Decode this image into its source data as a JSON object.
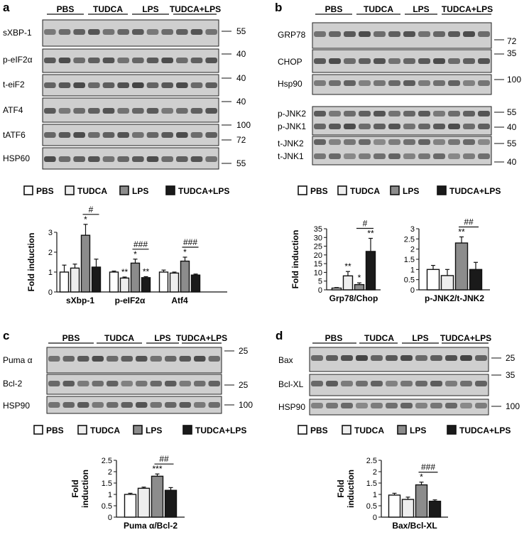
{
  "panels": [
    {
      "letter": "a",
      "group_labels": [
        "PBS",
        "TUDCA",
        "LPS",
        "TUDCA+LPS"
      ],
      "bands": [
        {
          "label": "sXBP-1",
          "marker": "55"
        },
        {
          "label": "p-eIF2α",
          "marker": "40"
        },
        {
          "label": "t-eiF2",
          "marker": "40"
        },
        {
          "label": "ATF4",
          "marker": "40"
        },
        {
          "label": "tATF6",
          "markers": [
            "100",
            "72"
          ]
        },
        {
          "label": "HSP60",
          "marker": "55"
        }
      ],
      "legend": [
        "PBS",
        "TUDCA",
        "LPS",
        "TUDCA+LPS"
      ],
      "chart_data": {
        "type": "bar",
        "ylabel": "Fold induction",
        "ylim": [
          0,
          3
        ],
        "yticks": [
          "0",
          "1",
          "2",
          "3"
        ],
        "categories": [
          "sXbp-1",
          "p-eIF2α",
          "Atf4"
        ],
        "series": [
          {
            "name": "PBS",
            "values": [
              1.0,
              1.0,
              1.0
            ]
          },
          {
            "name": "TUDCA",
            "values": [
              1.2,
              0.7,
              0.95
            ]
          },
          {
            "name": "LPS",
            "values": [
              2.85,
              1.45,
              1.55
            ]
          },
          {
            "name": "TUDCA+LPS",
            "values": [
              1.25,
              0.72,
              0.85
            ]
          }
        ],
        "errors": [
          [
            0.35,
            0.05,
            0.1
          ],
          [
            0.2,
            0.05,
            0.05
          ],
          [
            0.55,
            0.2,
            0.2
          ],
          [
            0.4,
            0.05,
            0.05
          ]
        ],
        "annotations": [
          {
            "text": "*",
            "category": 0,
            "series": 2
          },
          {
            "text": "#",
            "category": 0
          },
          {
            "text": "**",
            "category": 1,
            "series": 1
          },
          {
            "text": "*",
            "category": 1,
            "series": 2
          },
          {
            "text": "**",
            "category": 1,
            "series": 3
          },
          {
            "text": "###",
            "category": 1
          },
          {
            "text": "*",
            "category": 2,
            "series": 2
          },
          {
            "text": "###",
            "category": 2
          }
        ]
      }
    },
    {
      "letter": "b",
      "group_labels": [
        "PBS",
        "TUDCA",
        "LPS",
        "TUDCA+LPS"
      ],
      "bands": [
        {
          "label": "GRP78",
          "marker": "72"
        },
        {
          "label": "CHOP",
          "marker": "35"
        },
        {
          "label": "Hsp90",
          "marker": "100"
        },
        {
          "labels": [
            "p-JNK2",
            "p-JNK1"
          ],
          "markers": [
            "55",
            "40"
          ]
        },
        {
          "labels": [
            "t-JNK2",
            "t-JNK1"
          ],
          "markers": [
            "55",
            "40"
          ]
        }
      ],
      "legend": [
        "PBS",
        "TUDCA",
        "LPS",
        "TUDCA+LPS"
      ],
      "chart_data": [
        {
          "type": "bar",
          "ylabel": "Fold induction",
          "ylim": [
            0,
            35
          ],
          "yticks": [
            "0",
            "5",
            "10",
            "15",
            "20",
            "25",
            "30",
            "35"
          ],
          "categories": [
            "Grp78/Chop"
          ],
          "series": [
            {
              "name": "PBS",
              "values": [
                1.0
              ]
            },
            {
              "name": "TUDCA",
              "values": [
                8.0
              ]
            },
            {
              "name": "LPS",
              "values": [
                3.0
              ]
            },
            {
              "name": "TUDCA+LPS",
              "values": [
                22.0
              ]
            }
          ],
          "errors": [
            [
              0.3
            ],
            [
              2.5
            ],
            [
              1.0
            ],
            [
              7.5
            ]
          ],
          "annotations": [
            {
              "text": "**",
              "category": 0,
              "series": 1
            },
            {
              "text": "*",
              "category": 0,
              "series": 2
            },
            {
              "text": "**",
              "category": 0,
              "series": 3
            },
            {
              "text": "#",
              "category": 0
            }
          ]
        },
        {
          "type": "bar",
          "ylabel": "",
          "ylim": [
            0,
            3
          ],
          "yticks": [
            "0",
            "0.5",
            "1",
            "1.5",
            "2",
            "2.5",
            "3"
          ],
          "categories": [
            "p-JNK2/t-JNK2"
          ],
          "series": [
            {
              "name": "PBS",
              "values": [
                1.0
              ]
            },
            {
              "name": "TUDCA",
              "values": [
                0.7
              ]
            },
            {
              "name": "LPS",
              "values": [
                2.3
              ]
            },
            {
              "name": "TUDCA+LPS",
              "values": [
                1.0
              ]
            }
          ],
          "errors": [
            [
              0.2
            ],
            [
              0.3
            ],
            [
              0.3
            ],
            [
              0.35
            ]
          ],
          "annotations": [
            {
              "text": "**",
              "category": 0,
              "series": 2
            },
            {
              "text": "##",
              "category": 0
            }
          ]
        }
      ]
    },
    {
      "letter": "c",
      "group_labels": [
        "PBS",
        "TUDCA",
        "LPS",
        "TUDCA+LPS"
      ],
      "bands": [
        {
          "label": "Puma α",
          "marker": "25"
        },
        {
          "label": "Bcl-2",
          "marker": "25"
        },
        {
          "label": "HSP90",
          "marker": "100"
        }
      ],
      "legend": [
        "PBS",
        "TUDCA",
        "LPS",
        "TUDCA+LPS"
      ],
      "chart_data": {
        "type": "bar",
        "ylabel": "Fold induction",
        "ylim": [
          0,
          2.5
        ],
        "yticks": [
          "0",
          "0.5",
          "1",
          "1.5",
          "2",
          "2.5"
        ],
        "categories": [
          "Puma α/Bcl-2"
        ],
        "series": [
          {
            "name": "PBS",
            "values": [
              1.0
            ]
          },
          {
            "name": "TUDCA",
            "values": [
              1.27
            ]
          },
          {
            "name": "LPS",
            "values": [
              1.8
            ]
          },
          {
            "name": "TUDCA+LPS",
            "values": [
              1.18
            ]
          }
        ],
        "errors": [
          [
            0.05
          ],
          [
            0.05
          ],
          [
            0.1
          ],
          [
            0.12
          ]
        ],
        "annotations": [
          {
            "text": "***",
            "category": 0,
            "series": 2
          },
          {
            "text": "##",
            "category": 0
          }
        ]
      }
    },
    {
      "letter": "d",
      "group_labels": [
        "PBS",
        "TUDCA",
        "LPS",
        "TUDCA+LPS"
      ],
      "bands": [
        {
          "label": "Bax",
          "marker": "25"
        },
        {
          "label": "Bcl-XL",
          "marker": "35"
        },
        {
          "label": "HSP90",
          "marker": "100"
        }
      ],
      "legend": [
        "PBS",
        "TUDCA",
        "LPS",
        "TUDCA+LPS"
      ],
      "chart_data": {
        "type": "bar",
        "ylabel": "Fold induction",
        "ylim": [
          0,
          2.5
        ],
        "yticks": [
          "0",
          "0.5",
          "1",
          "1.5",
          "2",
          "2.5"
        ],
        "categories": [
          "Bax/Bcl-XL"
        ],
        "series": [
          {
            "name": "PBS",
            "values": [
              0.97
            ]
          },
          {
            "name": "TUDCA",
            "values": [
              0.78
            ]
          },
          {
            "name": "LPS",
            "values": [
              1.42
            ]
          },
          {
            "name": "TUDCA+LPS",
            "values": [
              0.7
            ]
          }
        ],
        "errors": [
          [
            0.08
          ],
          [
            0.1
          ],
          [
            0.12
          ],
          [
            0.06
          ]
        ],
        "annotations": [
          {
            "text": "*",
            "category": 0,
            "series": 2
          },
          {
            "text": "###",
            "category": 0
          }
        ]
      }
    }
  ],
  "series_colors": {
    "PBS": "#ffffff",
    "TUDCA": "#eeeeee",
    "LPS": "#8c8c8c",
    "TUDCA+LPS": "#1a1a1a"
  }
}
